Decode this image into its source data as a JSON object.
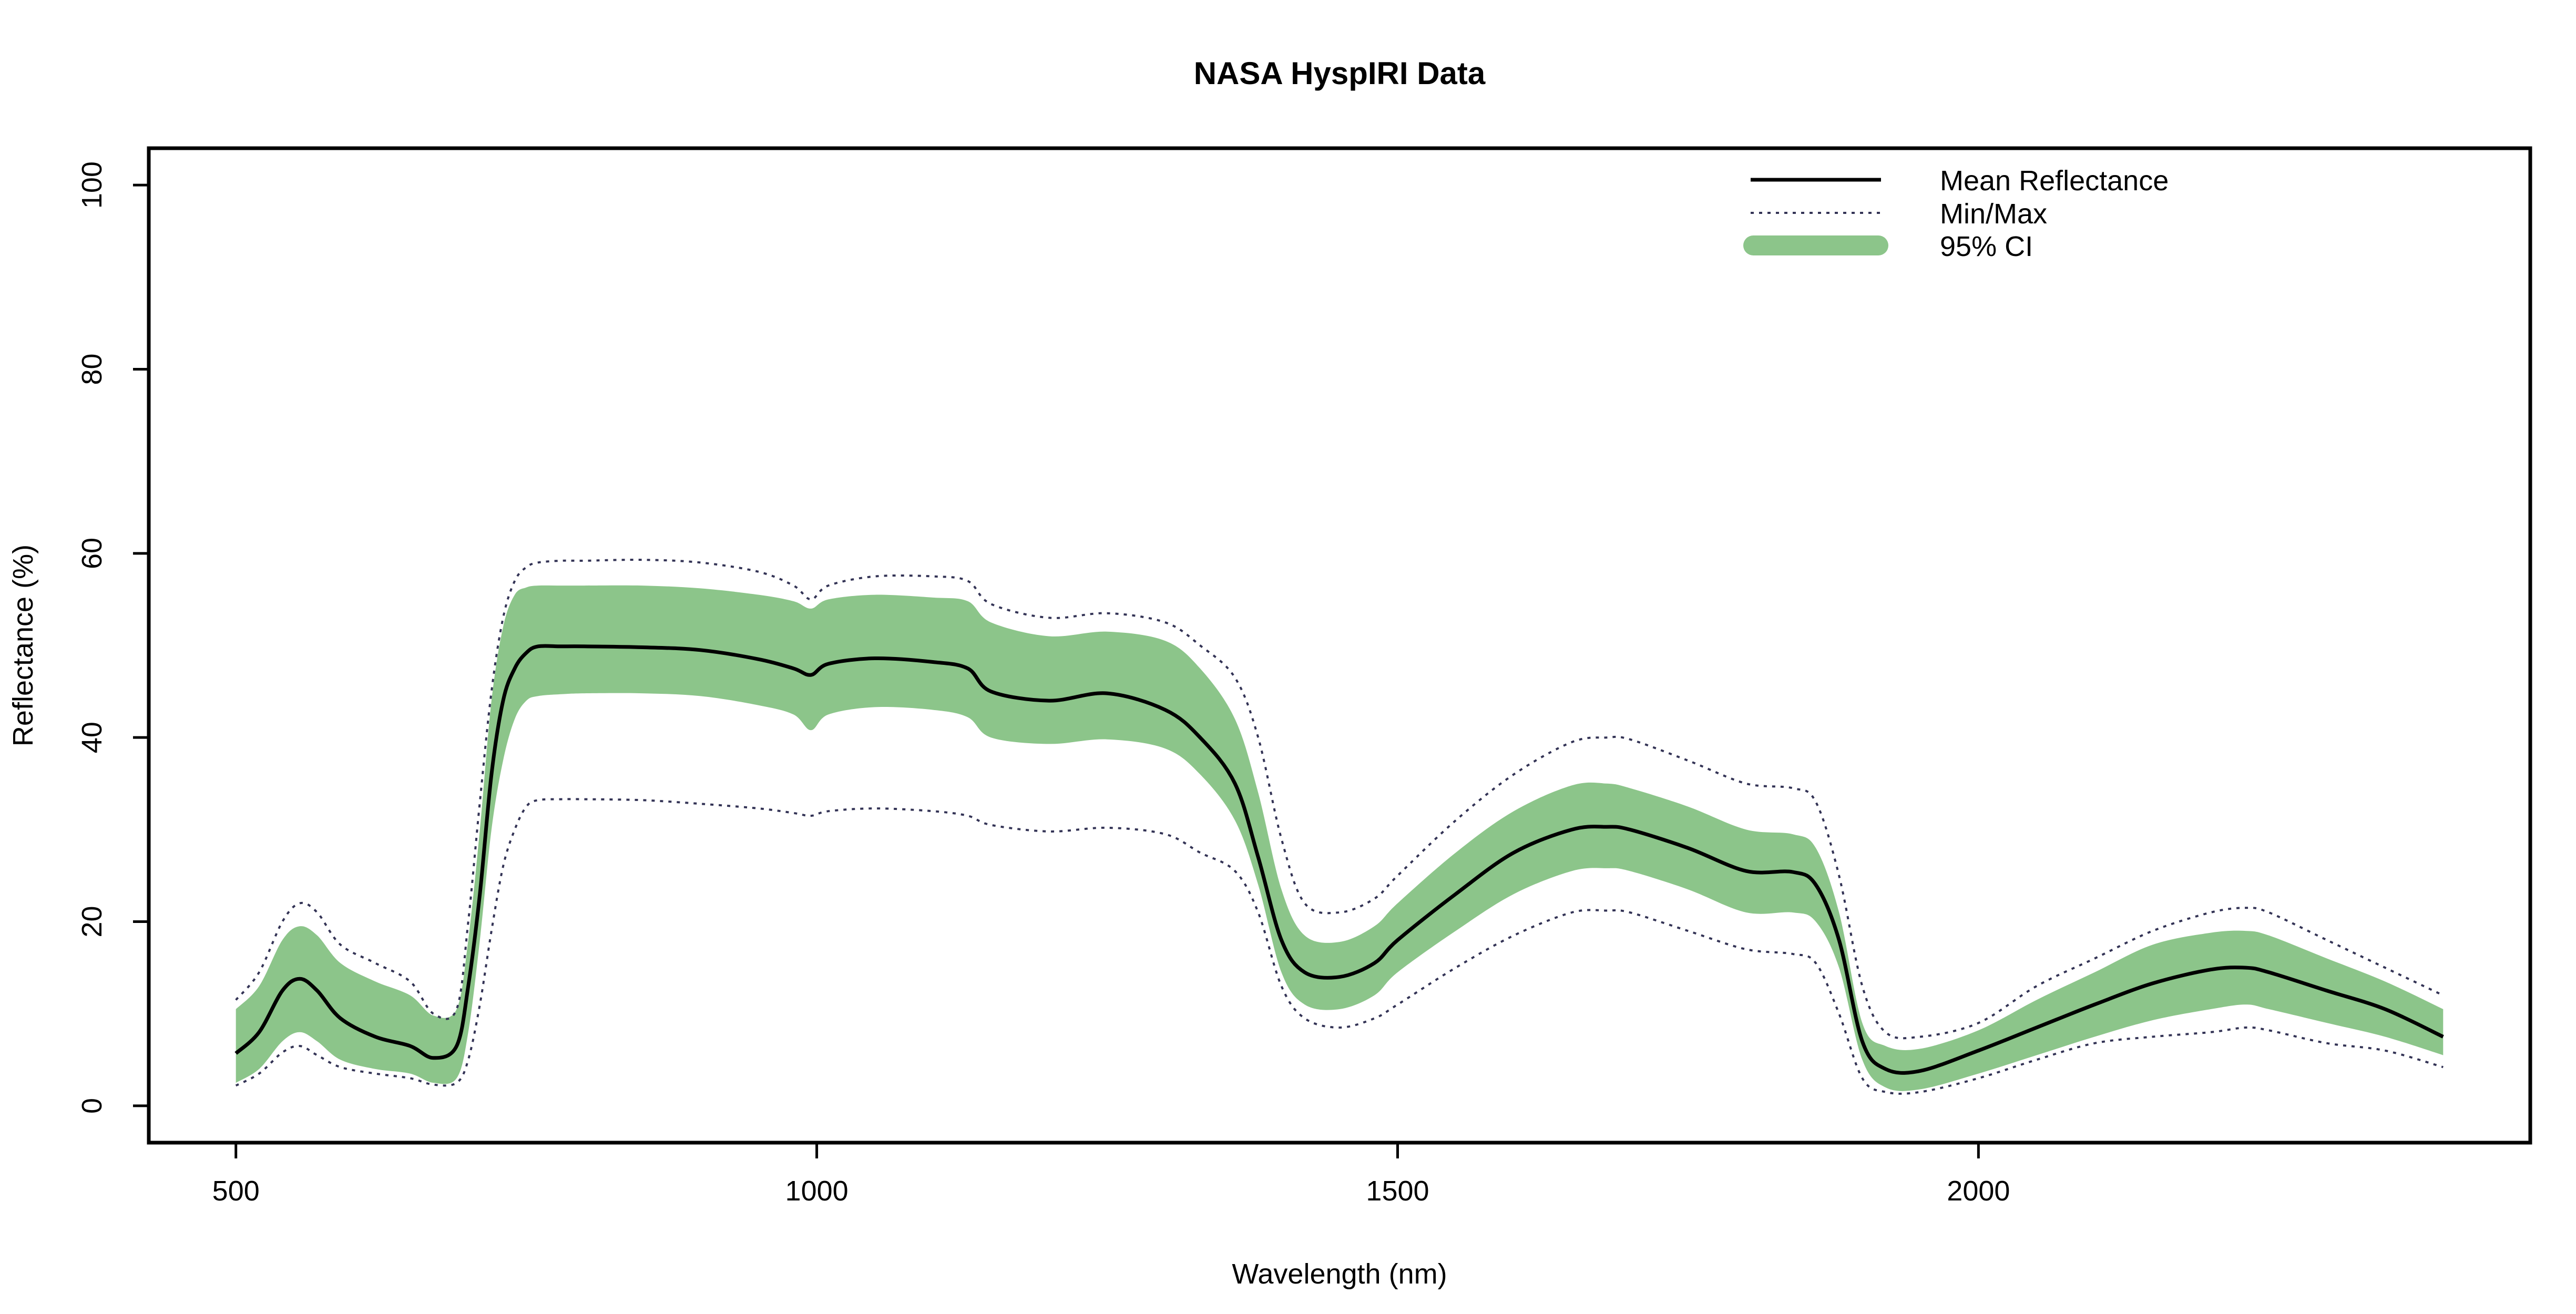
{
  "chart_data": {
    "type": "line",
    "title": "NASA HyspIRI Data",
    "xlabel": "Wavelength (nm)",
    "ylabel": "Reflectance (%)",
    "xlim": [
      425,
      2475
    ],
    "ylim": [
      -4,
      104
    ],
    "x_ticks": [
      500,
      1000,
      1500,
      2000
    ],
    "y_ticks": [
      0,
      20,
      40,
      60,
      80,
      100
    ],
    "grid": false,
    "legend_position": "top-right",
    "legend": [
      {
        "label": "Mean Reflectance",
        "style": "solid"
      },
      {
        "label": "Min/Max",
        "style": "dotted"
      },
      {
        "label": "95% CI",
        "style": "band"
      }
    ],
    "colors": {
      "mean": "#000000",
      "minmax": "#333355",
      "ci": "#8cc58a"
    },
    "x": [
      500,
      520,
      540,
      555,
      570,
      590,
      620,
      650,
      670,
      690,
      700,
      710,
      720,
      730,
      740,
      750,
      760,
      780,
      800,
      850,
      900,
      950,
      980,
      995,
      1010,
      1050,
      1100,
      1130,
      1150,
      1200,
      1250,
      1300,
      1330,
      1360,
      1380,
      1400,
      1420,
      1450,
      1480,
      1500,
      1550,
      1600,
      1650,
      1680,
      1700,
      1750,
      1800,
      1840,
      1860,
      1880,
      1900,
      1920,
      1950,
      2000,
      2050,
      2100,
      2150,
      2200,
      2230,
      2250,
      2300,
      2350,
      2400
    ],
    "series": [
      {
        "name": "Mean Reflectance",
        "values": [
          5.7,
          8,
          12.5,
          13.8,
          12.5,
          9.5,
          7.5,
          6.5,
          5.2,
          6.5,
          13,
          23,
          36,
          44,
          47.5,
          49.2,
          49.9,
          49.9,
          49.9,
          49.8,
          49.5,
          48.5,
          47.5,
          46.8,
          48,
          48.6,
          48.2,
          47.5,
          45,
          44,
          44.8,
          43,
          40,
          35,
          27,
          18,
          14.5,
          14,
          15.5,
          18,
          23,
          27.5,
          30,
          30.3,
          30,
          28,
          25.5,
          25.4,
          24,
          18,
          7,
          4,
          3.8,
          6,
          8.5,
          11,
          13.3,
          14.8,
          15,
          14.5,
          12.5,
          10.5,
          7.5
        ]
      },
      {
        "name": "Max",
        "values": [
          11.5,
          14.5,
          20,
          22,
          21,
          17.5,
          15.5,
          13.5,
          10,
          10.5,
          20,
          33,
          45,
          53,
          57,
          58.5,
          59,
          59.2,
          59.2,
          59.3,
          59,
          58,
          56.5,
          55,
          56.5,
          57.5,
          57.5,
          57,
          54.5,
          53,
          53.5,
          52.5,
          50,
          46.5,
          40,
          29,
          22,
          21,
          22.5,
          25,
          31,
          36,
          39.5,
          40,
          39.8,
          37.5,
          35,
          34.5,
          33,
          25,
          13,
          8,
          7.5,
          9,
          13,
          16,
          19,
          21,
          21.5,
          21,
          18,
          15,
          12
        ]
      },
      {
        "name": "Min",
        "values": [
          2.2,
          3.5,
          5.8,
          6.5,
          5.5,
          4.2,
          3.5,
          3,
          2.3,
          2.5,
          5,
          11,
          19,
          26,
          30,
          32.5,
          33.2,
          33.3,
          33.3,
          33.2,
          32.8,
          32.3,
          31.8,
          31.5,
          32,
          32.3,
          32,
          31.5,
          30.5,
          29.8,
          30.2,
          29.5,
          27.5,
          25.5,
          21,
          13,
          9.5,
          8.5,
          9.5,
          11,
          15,
          18.5,
          21,
          21.2,
          21,
          19,
          17,
          16.5,
          15.5,
          10,
          3,
          1.5,
          1.5,
          3,
          5,
          6.8,
          7.5,
          8,
          8.5,
          8.2,
          6.8,
          6,
          4.2
        ]
      },
      {
        "name": "95% CI upper",
        "values": [
          10.5,
          13,
          18,
          19.5,
          18.5,
          15.5,
          13.5,
          12,
          9.8,
          10.5,
          18,
          30,
          44,
          52,
          55.5,
          56.3,
          56.5,
          56.5,
          56.5,
          56.5,
          56.2,
          55.5,
          54.8,
          54,
          55,
          55.5,
          55.2,
          54.8,
          52.5,
          51,
          51.5,
          50.5,
          47.5,
          42,
          34,
          23.5,
          18.5,
          17.8,
          19.5,
          22,
          27.5,
          32,
          34.8,
          35,
          34.5,
          32.5,
          30,
          29.5,
          28,
          21,
          9,
          6.5,
          6.2,
          8.2,
          11.5,
          14.5,
          17.5,
          18.8,
          19,
          18.5,
          16,
          13.5,
          10.5
        ]
      },
      {
        "name": "95% CI lower",
        "values": [
          2.5,
          4,
          7,
          8,
          7,
          5,
          4,
          3.5,
          2.5,
          3,
          8,
          18,
          30,
          37.5,
          42,
          44,
          44.5,
          44.7,
          44.8,
          44.8,
          44.5,
          43.5,
          42.5,
          40.8,
          42.5,
          43.3,
          43,
          42.2,
          40,
          39.3,
          39.8,
          38.8,
          36,
          31,
          24,
          14.5,
          11,
          10.5,
          12,
          14.5,
          19,
          23,
          25.5,
          25.8,
          25.5,
          23.5,
          21,
          21,
          20,
          15,
          5,
          2,
          1.8,
          3.5,
          5.5,
          7.5,
          9.3,
          10.5,
          11,
          10.5,
          9,
          7.5,
          5.5
        ]
      }
    ]
  }
}
